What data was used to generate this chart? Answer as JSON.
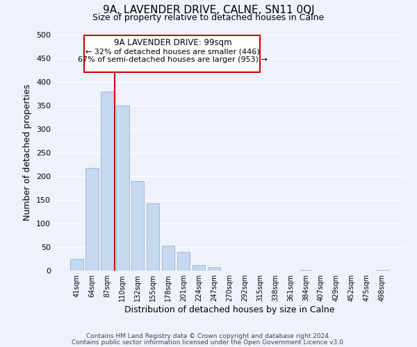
{
  "title": "9A, LAVENDER DRIVE, CALNE, SN11 0QJ",
  "subtitle": "Size of property relative to detached houses in Calne",
  "xlabel": "Distribution of detached houses by size in Calne",
  "ylabel": "Number of detached properties",
  "bar_labels": [
    "41sqm",
    "64sqm",
    "87sqm",
    "110sqm",
    "132sqm",
    "155sqm",
    "178sqm",
    "201sqm",
    "224sqm",
    "247sqm",
    "270sqm",
    "292sqm",
    "315sqm",
    "338sqm",
    "361sqm",
    "384sqm",
    "407sqm",
    "429sqm",
    "452sqm",
    "475sqm",
    "498sqm"
  ],
  "bar_values": [
    25,
    218,
    380,
    350,
    190,
    143,
    53,
    40,
    12,
    7,
    0,
    0,
    0,
    0,
    0,
    2,
    0,
    0,
    0,
    0,
    2
  ],
  "bar_color": "#c5d8f0",
  "bar_edge_color": "#a0b8d8",
  "vline_x": 2.5,
  "vline_color": "#cc0000",
  "annotation_title": "9A LAVENDER DRIVE: 99sqm",
  "annotation_line1": "← 32% of detached houses are smaller (446)",
  "annotation_line2": "67% of semi-detached houses are larger (953) →",
  "annotation_box_color": "#ffffff",
  "annotation_box_edge": "#cc0000",
  "ylim": [
    0,
    500
  ],
  "yticks": [
    0,
    50,
    100,
    150,
    200,
    250,
    300,
    350,
    400,
    450,
    500
  ],
  "footer1": "Contains HM Land Registry data © Crown copyright and database right 2024.",
  "footer2": "Contains public sector information licensed under the Open Government Licence v3.0.",
  "bg_color": "#eef2fb",
  "grid_color": "#ffffff"
}
